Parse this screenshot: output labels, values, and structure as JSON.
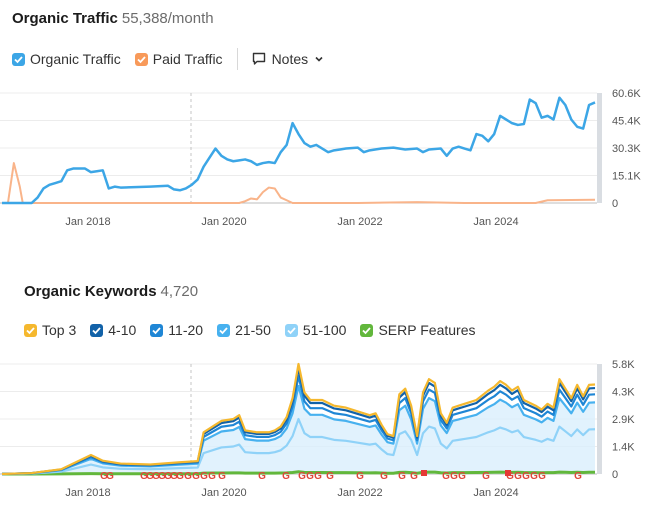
{
  "traffic": {
    "title": "Organic Traffic",
    "value": "55,388/month",
    "legend": [
      {
        "label": "Organic Traffic",
        "color": "#3ca6e6"
      },
      {
        "label": "Paid Traffic",
        "color": "#f89a5a"
      }
    ],
    "notes_label": "Notes",
    "chart_data": {
      "type": "line",
      "title": "Organic Traffic",
      "y_ticks": [
        "60.6K",
        "45.4K",
        "30.3K",
        "15.1K",
        "0"
      ],
      "ylim": [
        0,
        60600
      ],
      "x_ticks": [
        "Jan 2018",
        "Jan 2020",
        "Jan 2022",
        "Jan 2024"
      ],
      "series": [
        {
          "name": "Organic Traffic",
          "color": "#3ca6e6",
          "points": [
            [
              0,
              0
            ],
            [
              0.05,
              0
            ],
            [
              0.06,
              3000
            ],
            [
              0.07,
              8000
            ],
            [
              0.08,
              10000
            ],
            [
              0.09,
              11000
            ],
            [
              0.1,
              12000
            ],
            [
              0.11,
              18000
            ],
            [
              0.12,
              19000
            ],
            [
              0.14,
              19000
            ],
            [
              0.15,
              17000
            ],
            [
              0.16,
              17500
            ],
            [
              0.17,
              18000
            ],
            [
              0.18,
              8000
            ],
            [
              0.19,
              9000
            ],
            [
              0.2,
              8500
            ],
            [
              0.25,
              9000
            ],
            [
              0.28,
              9500
            ],
            [
              0.29,
              7500
            ],
            [
              0.3,
              7000
            ],
            [
              0.31,
              8000
            ],
            [
              0.32,
              10000
            ],
            [
              0.33,
              13000
            ],
            [
              0.34,
              20000
            ],
            [
              0.35,
              25000
            ],
            [
              0.36,
              30000
            ],
            [
              0.37,
              26000
            ],
            [
              0.38,
              24000
            ],
            [
              0.39,
              23000
            ],
            [
              0.4,
              23500
            ],
            [
              0.41,
              24000
            ],
            [
              0.42,
              23000
            ],
            [
              0.43,
              21000
            ],
            [
              0.44,
              22000
            ],
            [
              0.45,
              22500
            ],
            [
              0.46,
              22000
            ],
            [
              0.47,
              28000
            ],
            [
              0.48,
              32000
            ],
            [
              0.49,
              44000
            ],
            [
              0.5,
              38000
            ],
            [
              0.51,
              33000
            ],
            [
              0.52,
              31000
            ],
            [
              0.53,
              32000
            ],
            [
              0.54,
              30000
            ],
            [
              0.55,
              28000
            ],
            [
              0.56,
              29000
            ],
            [
              0.57,
              29500
            ],
            [
              0.58,
              30000
            ],
            [
              0.6,
              30500
            ],
            [
              0.61,
              28000
            ],
            [
              0.62,
              29000
            ],
            [
              0.64,
              30000
            ],
            [
              0.66,
              30500
            ],
            [
              0.68,
              29500
            ],
            [
              0.7,
              30000
            ],
            [
              0.71,
              28000
            ],
            [
              0.72,
              29500
            ],
            [
              0.74,
              30000
            ],
            [
              0.75,
              26000
            ],
            [
              0.76,
              30000
            ],
            [
              0.77,
              31000
            ],
            [
              0.78,
              30000
            ],
            [
              0.79,
              29000
            ],
            [
              0.8,
              38000
            ],
            [
              0.81,
              37000
            ],
            [
              0.82,
              34000
            ],
            [
              0.83,
              38000
            ],
            [
              0.84,
              48000
            ],
            [
              0.85,
              46000
            ],
            [
              0.86,
              44000
            ],
            [
              0.87,
              43000
            ],
            [
              0.88,
              43500
            ],
            [
              0.89,
              57000
            ],
            [
              0.9,
              55000
            ],
            [
              0.91,
              47000
            ],
            [
              0.92,
              48000
            ],
            [
              0.93,
              46000
            ],
            [
              0.94,
              58000
            ],
            [
              0.95,
              54000
            ],
            [
              0.96,
              46000
            ],
            [
              0.97,
              42000
            ],
            [
              0.98,
              41000
            ],
            [
              0.99,
              54000
            ],
            [
              1.0,
              55388
            ]
          ]
        },
        {
          "name": "Paid Traffic",
          "color": "#f9b48a",
          "points": [
            [
              0,
              0
            ],
            [
              0.01,
              0
            ],
            [
              0.02,
              22000
            ],
            [
              0.03,
              9000
            ],
            [
              0.035,
              0
            ],
            [
              0.2,
              0
            ],
            [
              0.4,
              0
            ],
            [
              0.41,
              1000
            ],
            [
              0.42,
              2500
            ],
            [
              0.43,
              2000
            ],
            [
              0.44,
              6000
            ],
            [
              0.45,
              8500
            ],
            [
              0.46,
              8000
            ],
            [
              0.47,
              3000
            ],
            [
              0.48,
              1500
            ],
            [
              0.49,
              0
            ],
            [
              0.6,
              0
            ],
            [
              0.7,
              500
            ],
            [
              0.78,
              0
            ],
            [
              0.9,
              0
            ],
            [
              0.92,
              1500
            ],
            [
              1.0,
              1800
            ]
          ]
        }
      ]
    }
  },
  "keywords": {
    "title": "Organic Keywords",
    "value": "4,720",
    "legend": [
      {
        "label": "Top 3",
        "color": "#f5b82e"
      },
      {
        "label": "4-10",
        "color": "#1262a8"
      },
      {
        "label": "11-20",
        "color": "#1f86d5"
      },
      {
        "label": "21-50",
        "color": "#47b1ef"
      },
      {
        "label": "51-100",
        "color": "#8fd2f8"
      },
      {
        "label": "SERP Features",
        "color": "#62b73c"
      }
    ],
    "chart_data": {
      "type": "area",
      "title": "Organic Keywords",
      "y_ticks": [
        "5.8K",
        "4.3K",
        "2.9K",
        "1.4K",
        "0"
      ],
      "ylim": [
        0,
        5800
      ],
      "x_ticks": [
        "Jan 2018",
        "Jan 2020",
        "Jan 2022",
        "Jan 2024"
      ],
      "series": [
        {
          "name": "Top 3",
          "color": "#f5b82e",
          "points": [
            [
              0,
              0
            ],
            [
              0.05,
              50
            ],
            [
              0.1,
              250
            ],
            [
              0.15,
              1000
            ],
            [
              0.17,
              700
            ],
            [
              0.2,
              550
            ],
            [
              0.25,
              500
            ],
            [
              0.3,
              620
            ],
            [
              0.33,
              680
            ],
            [
              0.34,
              2200
            ],
            [
              0.36,
              2600
            ],
            [
              0.37,
              2800
            ],
            [
              0.39,
              2900
            ],
            [
              0.4,
              3100
            ],
            [
              0.41,
              2300
            ],
            [
              0.43,
              2200
            ],
            [
              0.45,
              2200
            ],
            [
              0.46,
              2300
            ],
            [
              0.47,
              2500
            ],
            [
              0.48,
              3000
            ],
            [
              0.49,
              4000
            ],
            [
              0.5,
              5800
            ],
            [
              0.51,
              4300
            ],
            [
              0.52,
              3900
            ],
            [
              0.54,
              3900
            ],
            [
              0.56,
              3600
            ],
            [
              0.58,
              3500
            ],
            [
              0.6,
              3300
            ],
            [
              0.62,
              3100
            ],
            [
              0.63,
              3200
            ],
            [
              0.64,
              2600
            ],
            [
              0.65,
              2100
            ],
            [
              0.66,
              2000
            ],
            [
              0.67,
              4200
            ],
            [
              0.68,
              4500
            ],
            [
              0.69,
              3600
            ],
            [
              0.7,
              2000
            ],
            [
              0.71,
              4300
            ],
            [
              0.72,
              5000
            ],
            [
              0.73,
              4800
            ],
            [
              0.74,
              3200
            ],
            [
              0.75,
              2700
            ],
            [
              0.76,
              3500
            ],
            [
              0.77,
              3600
            ],
            [
              0.78,
              3700
            ],
            [
              0.8,
              3900
            ],
            [
              0.82,
              4400
            ],
            [
              0.83,
              4600
            ],
            [
              0.84,
              4900
            ],
            [
              0.85,
              4700
            ],
            [
              0.86,
              4400
            ],
            [
              0.87,
              4600
            ],
            [
              0.88,
              3900
            ],
            [
              0.9,
              3600
            ],
            [
              0.91,
              3400
            ],
            [
              0.92,
              3700
            ],
            [
              0.93,
              3500
            ],
            [
              0.94,
              5000
            ],
            [
              0.95,
              4500
            ],
            [
              0.96,
              4000
            ],
            [
              0.97,
              4700
            ],
            [
              0.98,
              4100
            ],
            [
              0.99,
              4700
            ],
            [
              1.0,
              4720
            ]
          ]
        },
        {
          "name": "4-10",
          "color": "#1262a8",
          "factor": 0.96
        },
        {
          "name": "11-20",
          "color": "#1f86d5",
          "factor": 0.89
        },
        {
          "name": "21-50",
          "color": "#47b1ef",
          "factor": 0.8
        },
        {
          "name": "51-100",
          "color": "#8fd2f8",
          "factor": 0.5
        },
        {
          "name": "SERP Features",
          "color": "#62b73c",
          "factor": 0.02
        }
      ]
    }
  }
}
